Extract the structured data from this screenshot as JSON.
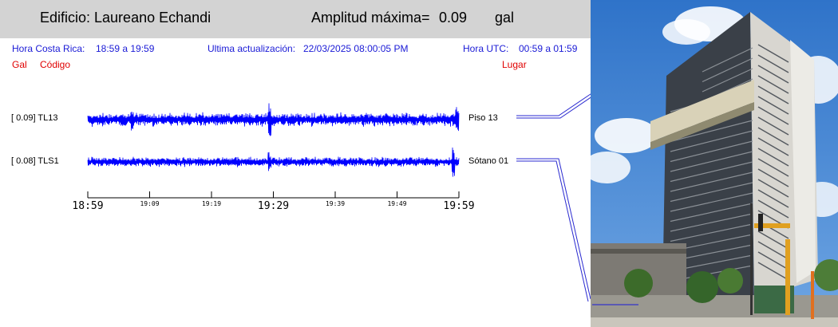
{
  "header": {
    "building_label": "Edificio: Laureano Echandi",
    "amplitude_label": "Amplitud máxima=",
    "amplitude_value": "0.09",
    "amplitude_unit": "gal"
  },
  "info": {
    "local_label": "Hora Costa Rica:",
    "local_range": "18:59 a 19:59",
    "update_label": "Ultima actualización:",
    "update_value": "22/03/2025 08:00:05 PM",
    "utc_label": "Hora UTC:",
    "utc_range": "00:59 a 01:59"
  },
  "columns": {
    "gal": "Gal",
    "code": "Código",
    "place": "Lugar"
  },
  "colors": {
    "trace": "#0000ff",
    "header_bg": "#d3d3d3",
    "info": "#1a1ad6",
    "column_header": "#e00000",
    "leader": "#2a2ad0"
  },
  "chart_data": {
    "type": "line",
    "xlim": [
      "18:59",
      "19:59"
    ],
    "x_major_ticks": [
      "18:59",
      "19:29",
      "19:59"
    ],
    "x_minor_ticks": [
      "19:09",
      "19:19",
      "19:39",
      "19:49"
    ],
    "series": [
      {
        "name": "TL13",
        "peak_gal": "0.09",
        "peak_label": "[   0.09] TL13",
        "location": "Piso 13"
      },
      {
        "name": "TLS1",
        "peak_gal": "0.08",
        "peak_label": "[   0.08] TLS1",
        "location": "Sótano 01"
      }
    ]
  }
}
